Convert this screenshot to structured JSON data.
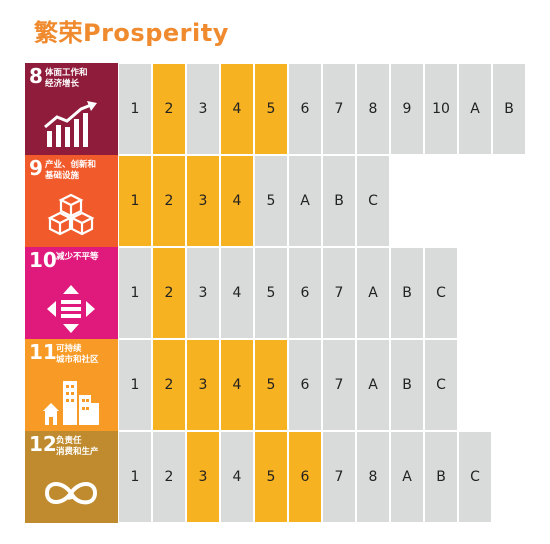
{
  "title": "繁荣Prosperity",
  "colors": {
    "highlight": "#f6b221",
    "cell": "#d9dbdb",
    "title": "#f08a2e"
  },
  "goals": [
    {
      "number": "8",
      "title_line1": "体面工作和",
      "title_line2": "经济增长",
      "color": "#8f1c3b",
      "icon": "rising-chart-icon",
      "targets": [
        {
          "label": "1",
          "highlight": false
        },
        {
          "label": "2",
          "highlight": true
        },
        {
          "label": "3",
          "highlight": false
        },
        {
          "label": "4",
          "highlight": true
        },
        {
          "label": "5",
          "highlight": true
        },
        {
          "label": "6",
          "highlight": false
        },
        {
          "label": "7",
          "highlight": false
        },
        {
          "label": "8",
          "highlight": false
        },
        {
          "label": "9",
          "highlight": false
        },
        {
          "label": "10",
          "highlight": false
        },
        {
          "label": "A",
          "highlight": false
        },
        {
          "label": "B",
          "highlight": false
        }
      ]
    },
    {
      "number": "9",
      "title_line1": "产业、创新和",
      "title_line2": "基础设施",
      "color": "#f15a2b",
      "icon": "stacked-cubes-icon",
      "targets": [
        {
          "label": "1",
          "highlight": true
        },
        {
          "label": "2",
          "highlight": true
        },
        {
          "label": "3",
          "highlight": true
        },
        {
          "label": "4",
          "highlight": true
        },
        {
          "label": "5",
          "highlight": false
        },
        {
          "label": "A",
          "highlight": false
        },
        {
          "label": "B",
          "highlight": false
        },
        {
          "label": "C",
          "highlight": false
        }
      ]
    },
    {
      "number": "10",
      "title_line1": "减少不平等",
      "title_line2": "",
      "color": "#e0197d",
      "icon": "equality-arrows-icon",
      "targets": [
        {
          "label": "1",
          "highlight": false
        },
        {
          "label": "2",
          "highlight": true
        },
        {
          "label": "3",
          "highlight": false
        },
        {
          "label": "4",
          "highlight": false
        },
        {
          "label": "5",
          "highlight": false
        },
        {
          "label": "6",
          "highlight": false
        },
        {
          "label": "7",
          "highlight": false
        },
        {
          "label": "A",
          "highlight": false
        },
        {
          "label": "B",
          "highlight": false
        },
        {
          "label": "C",
          "highlight": false
        }
      ]
    },
    {
      "number": "11",
      "title_line1": "可持续",
      "title_line2": "城市和社区",
      "color": "#f89b26",
      "icon": "city-buildings-icon",
      "targets": [
        {
          "label": "1",
          "highlight": false
        },
        {
          "label": "2",
          "highlight": true
        },
        {
          "label": "3",
          "highlight": true
        },
        {
          "label": "4",
          "highlight": true
        },
        {
          "label": "5",
          "highlight": true
        },
        {
          "label": "6",
          "highlight": false
        },
        {
          "label": "7",
          "highlight": false
        },
        {
          "label": "A",
          "highlight": false
        },
        {
          "label": "B",
          "highlight": false
        },
        {
          "label": "C",
          "highlight": false
        }
      ]
    },
    {
      "number": "12",
      "title_line1": "负责任",
      "title_line2": "消费和生产",
      "color": "#bf8b2e",
      "icon": "infinity-loop-icon",
      "targets": [
        {
          "label": "1",
          "highlight": false
        },
        {
          "label": "2",
          "highlight": false
        },
        {
          "label": "3",
          "highlight": true
        },
        {
          "label": "4",
          "highlight": false
        },
        {
          "label": "5",
          "highlight": true
        },
        {
          "label": "6",
          "highlight": true
        },
        {
          "label": "7",
          "highlight": false
        },
        {
          "label": "8",
          "highlight": false
        },
        {
          "label": "A",
          "highlight": false
        },
        {
          "label": "B",
          "highlight": false
        },
        {
          "label": "C",
          "highlight": false
        }
      ]
    }
  ]
}
